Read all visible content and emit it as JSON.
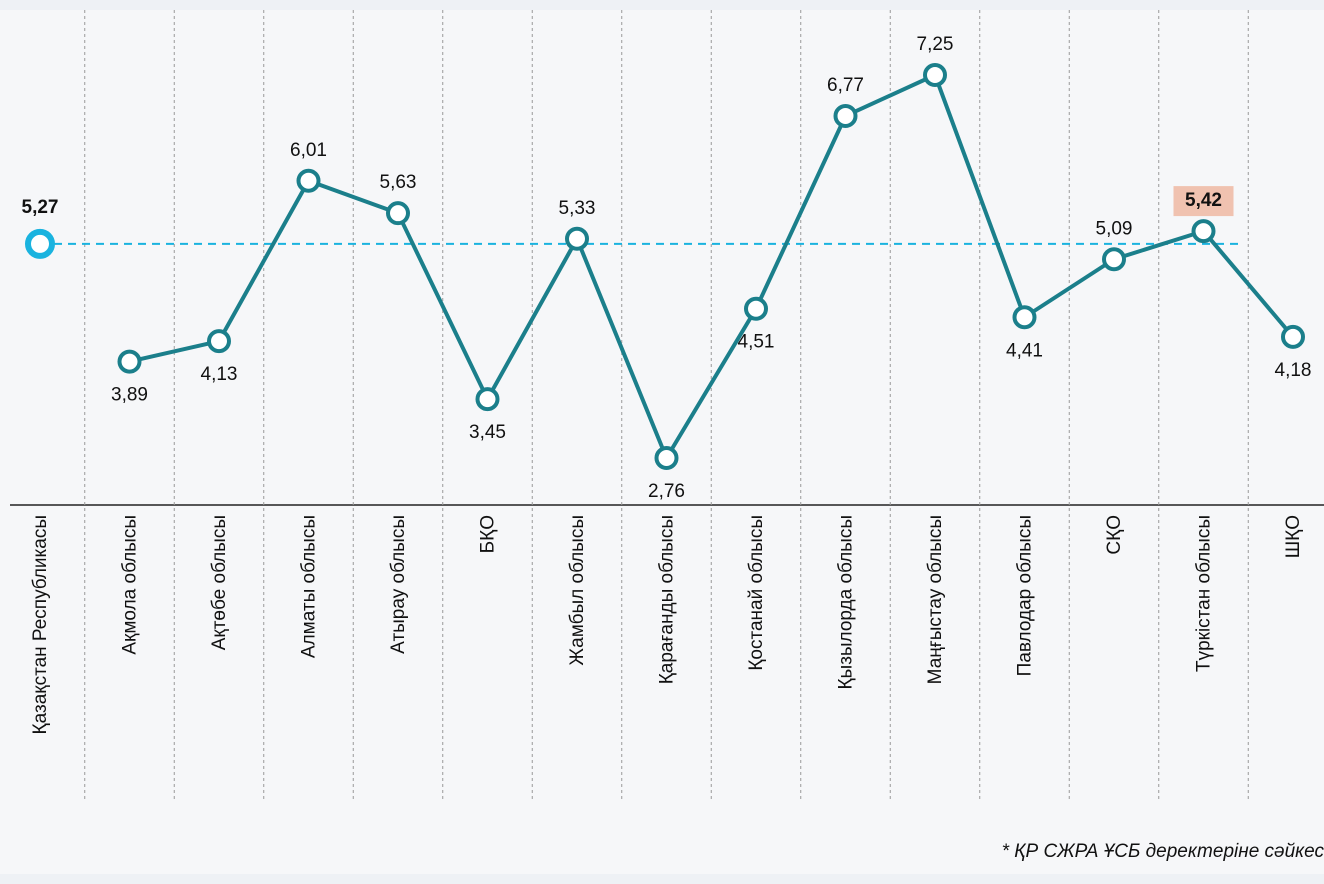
{
  "chart_data": {
    "type": "line",
    "reference": {
      "category": "Қазақстан Республикасы",
      "value": 5.27,
      "value_label": "5,27",
      "color": "#1ab3df"
    },
    "categories": [
      "Ақмола облысы",
      "Ақтөбе облысы",
      "Алматы облысы",
      "Атырау облысы",
      "БҚО",
      "Жамбыл облысы",
      "Қарағанды облысы",
      "Қостанай облысы",
      "Қызылорда облысы",
      "Маңғыстау облысы",
      "Павлодар облысы",
      "СҚО",
      "Түркістан облысы",
      "ШҚО"
    ],
    "series": [
      {
        "color": "#1b7f8b",
        "values": [
          3.89,
          4.13,
          6.01,
          5.63,
          3.45,
          5.33,
          2.76,
          4.51,
          6.77,
          7.25,
          4.41,
          5.09,
          5.42,
          4.18
        ],
        "value_labels": [
          "3,89",
          "4,13",
          "6,01",
          "5,63",
          "3,45",
          "5,33",
          "2,76",
          "4,51",
          "6,77",
          "7,25",
          "4,41",
          "5,09",
          "5,42",
          "4,18"
        ]
      }
    ],
    "highlight": {
      "category": "Түркістан облысы",
      "color": "#f0c2b0"
    },
    "footnote": "* ҚР СЖРА ҰСБ  деректеріне сәйкес"
  }
}
